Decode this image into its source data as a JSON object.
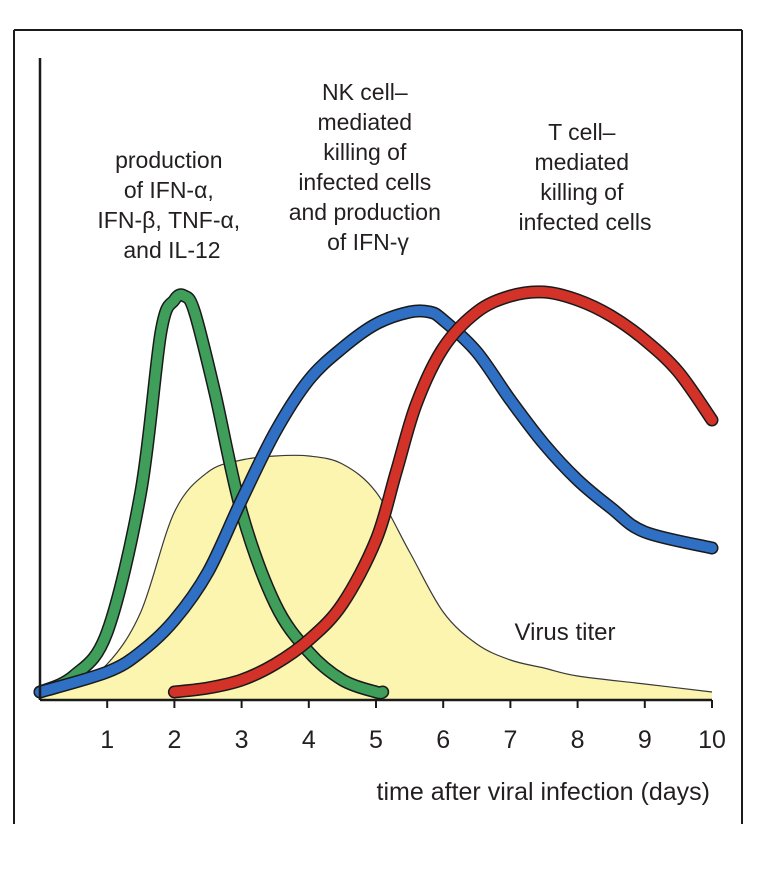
{
  "chart_data": {
    "type": "line",
    "xlabel": "time after viral infection (days)",
    "ylabel": "",
    "xlim": [
      0,
      10
    ],
    "ylim": [
      0,
      1
    ],
    "xticks": [
      "1",
      "2",
      "3",
      "4",
      "5",
      "6",
      "7",
      "8",
      "9",
      "10"
    ],
    "grid": false,
    "series": [
      {
        "name": "Virus titer",
        "style": "area",
        "color": "#fbf5b0",
        "edge_color": "#3a3a3a",
        "x": [
          0,
          0.5,
          1.0,
          1.5,
          2.0,
          2.5,
          3.0,
          3.5,
          4.0,
          4.5,
          5.0,
          5.5,
          6.0,
          6.5,
          7.0,
          7.5,
          8.0,
          9.0,
          10.0
        ],
        "y": [
          0.0,
          0.02,
          0.07,
          0.2,
          0.45,
          0.55,
          0.58,
          0.59,
          0.59,
          0.57,
          0.5,
          0.35,
          0.2,
          0.12,
          0.08,
          0.06,
          0.04,
          0.02,
          0.0
        ]
      },
      {
        "name": "production of IFN-α, IFN-β, TNF-α, and IL-12",
        "color": "#3e9e5a",
        "x": [
          0,
          0.5,
          1.0,
          1.5,
          1.8,
          2.0,
          2.15,
          2.3,
          2.6,
          3.0,
          3.5,
          4.0,
          4.5,
          5.0,
          5.1
        ],
        "y": [
          0.0,
          0.04,
          0.15,
          0.5,
          0.9,
          0.98,
          0.99,
          0.95,
          0.75,
          0.45,
          0.22,
          0.1,
          0.03,
          0.0,
          0.0
        ]
      },
      {
        "name": "NK cell–mediated killing of infected cells and production of IFN-γ",
        "color": "#2f6fc4",
        "x": [
          0,
          1.0,
          1.5,
          2.0,
          2.5,
          3.0,
          3.5,
          4.0,
          4.5,
          5.0,
          5.5,
          5.8,
          6.0,
          6.5,
          7.0,
          7.5,
          8.0,
          8.5,
          9.0,
          10.0
        ],
        "y": [
          0.0,
          0.05,
          0.1,
          0.18,
          0.3,
          0.48,
          0.65,
          0.78,
          0.86,
          0.92,
          0.95,
          0.95,
          0.93,
          0.85,
          0.73,
          0.62,
          0.53,
          0.46,
          0.4,
          0.36
        ]
      },
      {
        "name": "T cell–mediated killing of infected cells",
        "color": "#d23228",
        "x": [
          2.0,
          2.5,
          3.0,
          3.5,
          4.0,
          4.5,
          5.0,
          5.3,
          5.6,
          6.0,
          6.5,
          7.0,
          7.5,
          8.0,
          8.5,
          9.0,
          9.5,
          10.0
        ],
        "y": [
          0.0,
          0.01,
          0.03,
          0.07,
          0.13,
          0.22,
          0.38,
          0.55,
          0.72,
          0.86,
          0.95,
          0.99,
          1.0,
          0.98,
          0.94,
          0.88,
          0.8,
          0.68
        ]
      }
    ],
    "annotations": [
      {
        "target": "green",
        "lines": [
          "production",
          "of IFN-α,",
          "IFN-β, TNF-α,",
          "and IL-12"
        ]
      },
      {
        "target": "blue",
        "lines": [
          "NK cell–",
          "mediated",
          "killing of",
          "infected cells",
          "and production",
          "of IFN-γ"
        ]
      },
      {
        "target": "red",
        "lines": [
          "T cell–",
          "mediated",
          "killing of",
          "infected cells"
        ]
      },
      {
        "target": "yellow",
        "lines": [
          "Virus titer"
        ]
      }
    ]
  }
}
